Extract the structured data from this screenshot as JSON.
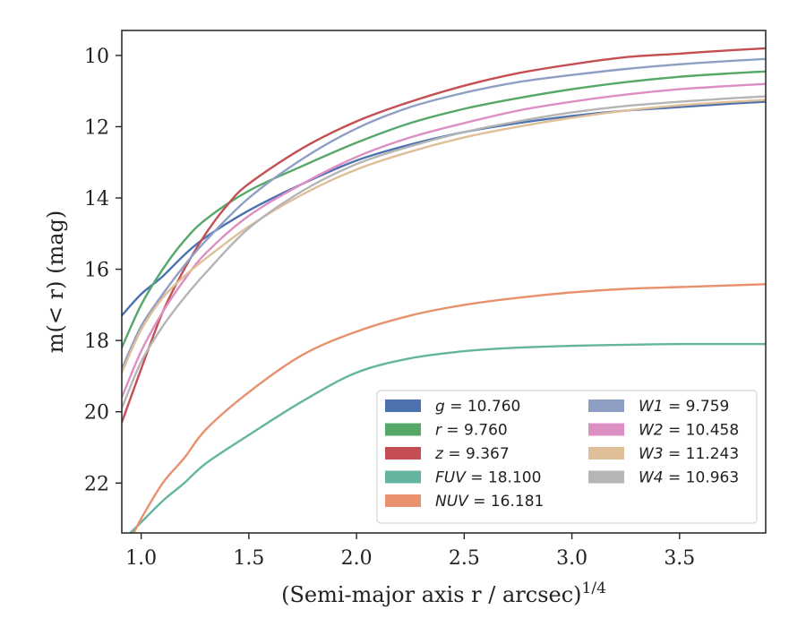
{
  "chart_data": {
    "type": "line",
    "xlabel": "(Semi-major axis r / arcsec)",
    "xlabel_sup": "1/4",
    "ylabel": "m(< r) (mag)",
    "xlim": [
      0.91,
      3.9
    ],
    "ylim": [
      23.4,
      9.3
    ],
    "y_inverted": true,
    "xticks": [
      1.0,
      1.5,
      2.0,
      2.5,
      3.0,
      3.5
    ],
    "xtick_labels": [
      "1.0",
      "1.5",
      "2.0",
      "2.5",
      "3.0",
      "3.5"
    ],
    "yticks": [
      10,
      12,
      14,
      16,
      18,
      20,
      22
    ],
    "ytick_labels": [
      "10",
      "12",
      "14",
      "16",
      "18",
      "20",
      "22"
    ],
    "grid": false,
    "legend_position": "lower-right",
    "series": [
      {
        "name": "g",
        "total": "10.760",
        "color": "#4c72b0",
        "x": [
          0.91,
          1.0,
          1.1,
          1.2,
          1.3,
          1.5,
          1.75,
          2.0,
          2.25,
          2.5,
          2.75,
          3.0,
          3.25,
          3.5,
          3.75,
          3.9
        ],
        "y": [
          17.3,
          16.7,
          16.2,
          15.6,
          15.1,
          14.35,
          13.6,
          12.95,
          12.5,
          12.15,
          11.9,
          11.7,
          11.55,
          11.45,
          11.35,
          11.3
        ]
      },
      {
        "name": "r",
        "total": "9.760",
        "color": "#55a868",
        "x": [
          0.91,
          1.0,
          1.1,
          1.2,
          1.3,
          1.5,
          1.75,
          2.0,
          2.25,
          2.5,
          2.75,
          3.0,
          3.25,
          3.5,
          3.75,
          3.9
        ],
        "y": [
          18.2,
          17.0,
          16.0,
          15.2,
          14.6,
          13.8,
          13.1,
          12.45,
          11.9,
          11.5,
          11.2,
          10.95,
          10.75,
          10.6,
          10.5,
          10.45
        ]
      },
      {
        "name": "z",
        "total": "9.367",
        "color": "#c44e52",
        "x": [
          0.91,
          1.0,
          1.1,
          1.2,
          1.3,
          1.4,
          1.5,
          1.75,
          2.0,
          2.25,
          2.5,
          2.75,
          3.0,
          3.25,
          3.5,
          3.75,
          3.9
        ],
        "y": [
          20.3,
          18.8,
          17.2,
          16.0,
          15.0,
          14.2,
          13.6,
          12.6,
          11.85,
          11.3,
          10.85,
          10.5,
          10.25,
          10.05,
          9.95,
          9.85,
          9.8
        ]
      },
      {
        "name": "FUV",
        "total": "18.100",
        "color": "#64b5a0",
        "x": [
          0.95,
          1.0,
          1.1,
          1.2,
          1.3,
          1.5,
          1.75,
          2.0,
          2.25,
          2.5,
          2.75,
          3.0,
          3.25,
          3.5,
          3.75,
          3.9
        ],
        "y": [
          23.4,
          23.1,
          22.5,
          22.0,
          21.45,
          20.65,
          19.7,
          18.9,
          18.5,
          18.3,
          18.2,
          18.15,
          18.12,
          18.1,
          18.1,
          18.1
        ]
      },
      {
        "name": "NUV",
        "total": "16.181",
        "color": "#e8916e",
        "x": [
          0.95,
          1.0,
          1.1,
          1.2,
          1.3,
          1.5,
          1.75,
          2.0,
          2.25,
          2.5,
          2.75,
          3.0,
          3.25,
          3.5,
          3.75,
          3.9
        ],
        "y": [
          23.6,
          23.0,
          22.0,
          21.3,
          20.5,
          19.45,
          18.4,
          17.75,
          17.3,
          17.0,
          16.8,
          16.65,
          16.55,
          16.5,
          16.45,
          16.42
        ]
      },
      {
        "name": "W1",
        "total": "9.759",
        "color": "#8f9fc3",
        "x": [
          0.91,
          1.0,
          1.1,
          1.2,
          1.3,
          1.5,
          1.75,
          2.0,
          2.25,
          2.5,
          2.75,
          3.0,
          3.25,
          3.5,
          3.75,
          3.9
        ],
        "y": [
          18.8,
          17.6,
          16.7,
          15.9,
          15.2,
          14.0,
          12.9,
          12.05,
          11.45,
          11.05,
          10.75,
          10.55,
          10.38,
          10.25,
          10.15,
          10.1
        ]
      },
      {
        "name": "W2",
        "total": "10.458",
        "color": "#dd8fc4",
        "x": [
          0.91,
          1.0,
          1.1,
          1.2,
          1.3,
          1.5,
          1.75,
          2.0,
          2.25,
          2.5,
          2.75,
          3.0,
          3.25,
          3.5,
          3.75,
          3.9
        ],
        "y": [
          19.6,
          18.3,
          17.2,
          16.3,
          15.55,
          14.5,
          13.6,
          12.85,
          12.3,
          11.9,
          11.55,
          11.3,
          11.1,
          10.95,
          10.85,
          10.8
        ]
      },
      {
        "name": "W3",
        "total": "11.243",
        "color": "#dfbf98",
        "x": [
          0.91,
          1.0,
          1.1,
          1.2,
          1.3,
          1.5,
          1.75,
          2.0,
          2.25,
          2.5,
          2.75,
          3.0,
          3.25,
          3.5,
          3.75,
          3.9
        ],
        "y": [
          18.9,
          17.7,
          16.8,
          16.2,
          15.7,
          14.8,
          13.9,
          13.2,
          12.7,
          12.3,
          12.0,
          11.75,
          11.55,
          11.4,
          11.3,
          11.25
        ]
      },
      {
        "name": "W4",
        "total": "10.963",
        "color": "#b5b5b5",
        "x": [
          0.91,
          1.0,
          1.1,
          1.2,
          1.3,
          1.5,
          1.75,
          2.0,
          2.25,
          2.5,
          2.75,
          3.0,
          3.25,
          3.5,
          3.75,
          3.9
        ],
        "y": [
          19.9,
          18.6,
          17.6,
          16.8,
          16.1,
          14.85,
          13.8,
          13.05,
          12.55,
          12.15,
          11.85,
          11.6,
          11.42,
          11.3,
          11.2,
          11.15
        ]
      }
    ]
  }
}
